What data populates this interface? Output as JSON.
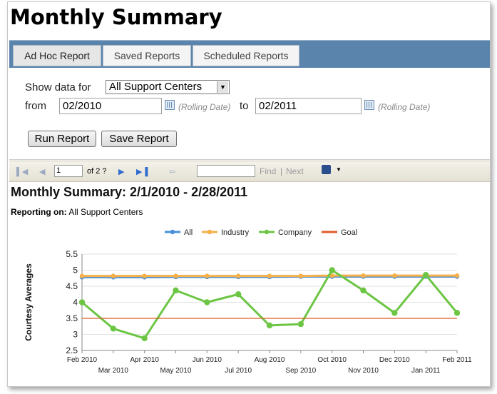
{
  "page_title": "Monthly Summary",
  "tabs": [
    {
      "label": "Ad Hoc Report",
      "active": true
    },
    {
      "label": "Saved Reports",
      "active": false
    },
    {
      "label": "Scheduled Reports",
      "active": false
    }
  ],
  "params": {
    "show_data_label": "Show data for",
    "show_data_value": "All Support Centers",
    "from_label": "from",
    "from_value": "02/2010",
    "rolling_date": "(Rolling Date)",
    "to_label": "to",
    "to_value": "02/2011",
    "run_button": "Run Report",
    "save_button": "Save Report"
  },
  "toolbar": {
    "page_value": "1",
    "page_of": "of 2 ?",
    "find_label": "Find",
    "separator": "|",
    "next_label": "Next",
    "icons": [
      "first-page-icon",
      "previous-page-icon",
      "next-page-icon",
      "last-page-icon",
      "back-icon",
      "export-save-icon",
      "dropdown-arrow-icon"
    ]
  },
  "report": {
    "title": "Monthly Summary: 2/1/2010 - 2/28/2011",
    "reporting_label": "Reporting on:",
    "reporting_value": "All Support Centers"
  },
  "colors": {
    "all": "#4a90d9",
    "industry": "#f5b04a",
    "company": "#6cc644",
    "goal": "#e05a2b",
    "tab_bar": "#5b84ad"
  },
  "chart_data": {
    "type": "line",
    "ylabel": "Courtesy Averages",
    "xlabel": "",
    "ylim": [
      2.5,
      5.5
    ],
    "yticks": [
      "5.5",
      "5",
      "4.5",
      "4",
      "3.5",
      "3",
      "2.5"
    ],
    "categories": [
      "Feb 2010",
      "Mar 2010",
      "Apr 2010",
      "May 2010",
      "Jun 2010",
      "Jul 2010",
      "Aug 2010",
      "Sep 2010",
      "Oct 2010",
      "Nov 2010",
      "Dec 2010",
      "Jan 2011",
      "Feb 2011"
    ],
    "legend_position": "top",
    "series": [
      {
        "name": "All",
        "values": [
          4.78,
          4.78,
          4.78,
          4.79,
          4.79,
          4.79,
          4.79,
          4.8,
          4.8,
          4.8,
          4.8,
          4.8,
          4.8
        ]
      },
      {
        "name": "Industry",
        "values": [
          4.82,
          4.82,
          4.82,
          4.82,
          4.82,
          4.82,
          4.82,
          4.82,
          4.83,
          4.83,
          4.83,
          4.83,
          4.83
        ]
      },
      {
        "name": "Company",
        "values": [
          4.0,
          3.18,
          2.88,
          4.37,
          4.0,
          4.25,
          3.28,
          3.32,
          5.0,
          4.37,
          3.67,
          4.85,
          3.67
        ]
      },
      {
        "name": "Goal",
        "values": [
          3.5,
          3.5,
          3.5,
          3.5,
          3.5,
          3.5,
          3.5,
          3.5,
          3.5,
          3.5,
          3.5,
          3.5,
          3.5
        ]
      }
    ]
  }
}
